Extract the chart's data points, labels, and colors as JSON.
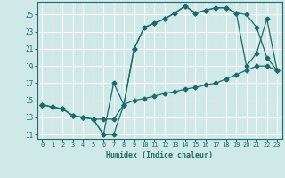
{
  "xlabel": "Humidex (Indice chaleur)",
  "bg_color": "#cfe8e8",
  "grid_color": "#ffffff",
  "line_color": "#1a6b6b",
  "xlim": [
    -0.5,
    23.5
  ],
  "ylim": [
    10.5,
    26.5
  ],
  "xticks": [
    0,
    1,
    2,
    3,
    4,
    5,
    6,
    7,
    8,
    9,
    10,
    11,
    12,
    13,
    14,
    15,
    16,
    17,
    18,
    19,
    20,
    21,
    22,
    23
  ],
  "yticks": [
    11,
    13,
    15,
    17,
    19,
    21,
    23,
    25
  ],
  "line1_x": [
    0,
    1,
    2,
    3,
    4,
    5,
    6,
    7,
    8,
    9,
    10,
    11,
    12,
    13,
    14,
    15,
    16,
    17,
    18,
    19,
    20,
    21,
    22,
    23
  ],
  "line1_y": [
    14.5,
    14.2,
    14.0,
    13.2,
    13.0,
    12.8,
    12.8,
    12.8,
    14.5,
    15.0,
    15.2,
    15.5,
    15.8,
    16.0,
    16.3,
    16.5,
    16.8,
    17.0,
    17.5,
    18.0,
    18.5,
    19.0,
    19.0,
    18.5
  ],
  "line2_x": [
    0,
    1,
    2,
    3,
    4,
    5,
    6,
    7,
    8,
    9,
    10,
    11,
    12,
    13,
    14,
    15,
    16,
    17,
    18,
    19,
    20,
    21,
    22,
    23
  ],
  "line2_y": [
    14.5,
    14.2,
    14.0,
    13.2,
    13.0,
    12.8,
    11.0,
    11.0,
    14.5,
    21.0,
    23.5,
    24.0,
    24.5,
    25.2,
    26.0,
    25.2,
    25.5,
    25.8,
    25.8,
    25.2,
    25.0,
    23.5,
    20.0,
    18.5
  ],
  "line3_x": [
    0,
    1,
    2,
    3,
    4,
    5,
    6,
    7,
    8,
    9,
    10,
    11,
    12,
    13,
    14,
    15,
    16,
    17,
    18,
    19,
    20,
    21,
    22,
    23
  ],
  "line3_y": [
    14.5,
    14.2,
    14.0,
    13.2,
    13.0,
    12.8,
    11.0,
    17.0,
    14.5,
    21.0,
    23.5,
    24.0,
    24.5,
    25.2,
    26.0,
    25.2,
    25.5,
    25.8,
    25.8,
    25.2,
    19.0,
    20.5,
    24.5,
    18.5
  ]
}
